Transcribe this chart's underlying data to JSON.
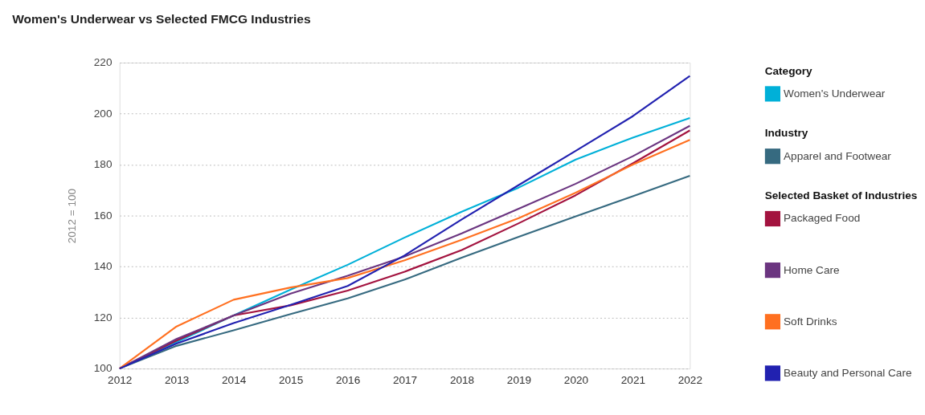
{
  "chart_data": {
    "type": "line",
    "title": "Women's Underwear vs Selected FMCG Industries",
    "ylabel": "2012 = 100",
    "legend_title": [
      "Category",
      "Industry",
      "Selected Basket of Industries"
    ],
    "categories": [
      "2012",
      "2013",
      "2014",
      "2015",
      "2016",
      "2017",
      "2018",
      "2019",
      "2020",
      "2021",
      "2022"
    ],
    "series": [
      {
        "name": "Women's Underwear",
        "color": "#00b0d8",
        "values": [
          100,
          110.4,
          120.8,
          131,
          140.7,
          151.4,
          161.5,
          171,
          182,
          190.6,
          198.3
        ]
      },
      {
        "name": "Apparel and Footwear",
        "color": "#366a80",
        "values": [
          100,
          108.9,
          115,
          121.4,
          127.5,
          134.9,
          143.5,
          151.7,
          159.7,
          167.6,
          175.6
        ]
      },
      {
        "name": "Packaged Food",
        "color": "#a3133f",
        "values": [
          100,
          111,
          120.8,
          124.8,
          130.6,
          138,
          146.5,
          157,
          168,
          180.5,
          193.4
        ]
      },
      {
        "name": "Home Care",
        "color": "#6b3580",
        "values": [
          100,
          111.6,
          120.8,
          129.4,
          136.4,
          144,
          153,
          162.7,
          172.5,
          183.3,
          195.2
        ]
      },
      {
        "name": "Soft Drinks",
        "color": "#ff7020",
        "values": [
          100,
          116.5,
          127,
          131.8,
          135.5,
          142.5,
          150.5,
          159,
          169,
          180,
          189.7
        ]
      },
      {
        "name": "Beauty and Personal Care",
        "color": "#2121b0",
        "values": [
          100,
          109.8,
          117.8,
          125,
          132.4,
          144.4,
          158.5,
          172,
          185.4,
          199,
          214.8
        ]
      }
    ],
    "ylim": [
      100,
      220
    ],
    "yticks": [
      100,
      120,
      140,
      160,
      180,
      200,
      220
    ],
    "grid": "y",
    "legend": "right",
    "marker": "none",
    "line_style": "solid"
  }
}
